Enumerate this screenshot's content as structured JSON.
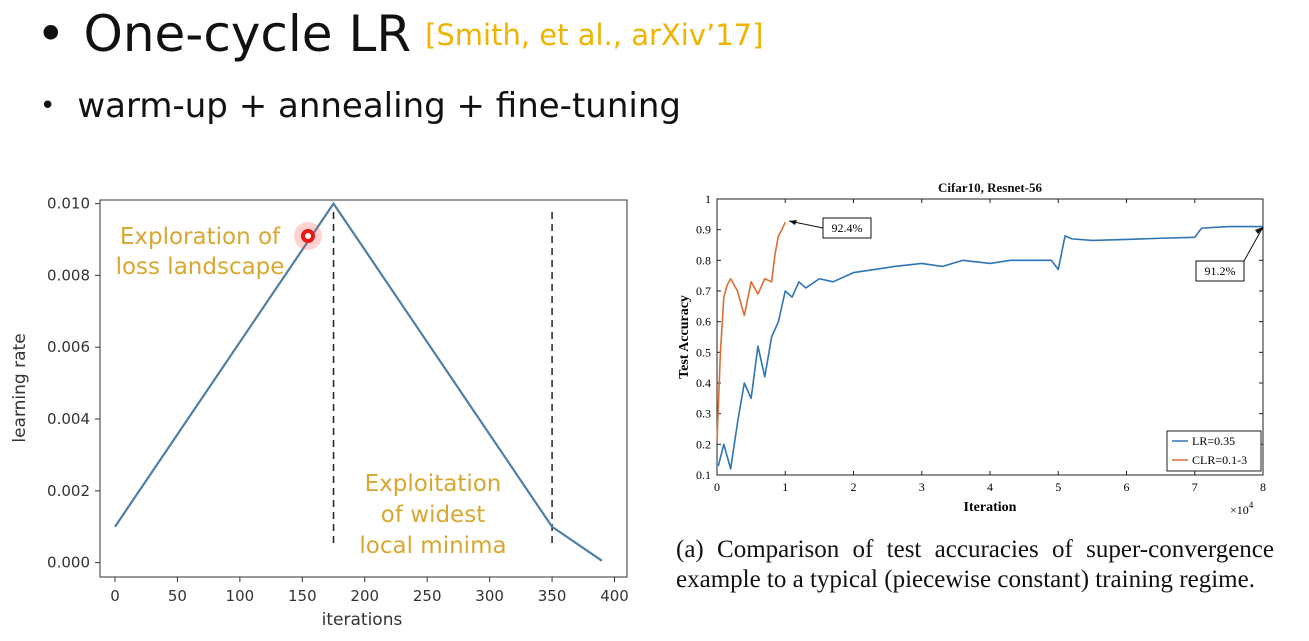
{
  "slide": {
    "title": "One-cycle LR",
    "citation": "[Smith, et al., arXiv’17]",
    "bullet_marker": "•",
    "subtitle": "warm-up + annealing + fine-tuning",
    "accent_color": "#f0b400"
  },
  "left_chart_annotations": {
    "explore_line1": "Exploration of",
    "explore_line2": "loss landscape",
    "exploit_line1": "Exploitation",
    "exploit_line2": "of widest",
    "exploit_line3": "local minima",
    "annotation_color": "#d9a730"
  },
  "right_chart_callouts": {
    "clr_peak": "92.4%",
    "lr_final": "91.2%",
    "x_multiplier": "×10",
    "x_multiplier_exp": "4"
  },
  "caption": "(a) Comparison of test accuracies of super-convergence example to a typical (piecewise constant) training regime.",
  "chart_data": [
    {
      "type": "line",
      "title": "",
      "xlabel": "iterations",
      "ylabel": "learning rate",
      "xlim": [
        -12,
        410
      ],
      "ylim": [
        -0.0004,
        0.0101
      ],
      "xticks": [
        0,
        50,
        100,
        150,
        200,
        250,
        300,
        350,
        400
      ],
      "yticks": [
        0.0,
        0.002,
        0.004,
        0.006,
        0.008,
        0.01
      ],
      "ytick_labels": [
        "0.000",
        "0.002",
        "0.004",
        "0.006",
        "0.008",
        "0.010"
      ],
      "grid": false,
      "series": [
        {
          "color": "#4f7fa5",
          "x": [
            0,
            175,
            350,
            390
          ],
          "y": [
            0.001,
            0.01,
            0.001,
            5e-05
          ]
        }
      ],
      "vlines": [
        175,
        350
      ]
    },
    {
      "type": "line",
      "title": "Cifar10, Resnet-56",
      "xlabel": "Iteration",
      "ylabel": "Test Accuracy",
      "xlim": [
        0,
        8
      ],
      "ylim": [
        0.1,
        1.0
      ],
      "xticks": [
        0,
        1,
        2,
        3,
        4,
        5,
        6,
        7,
        8
      ],
      "yticks": [
        0.1,
        0.2,
        0.3,
        0.4,
        0.5,
        0.6,
        0.7,
        0.8,
        0.9,
        1
      ],
      "legend_position": "bottom-right",
      "series": [
        {
          "name": "LR=0.35",
          "color": "#2f74b5",
          "x": [
            0.02,
            0.1,
            0.2,
            0.3,
            0.4,
            0.5,
            0.6,
            0.7,
            0.8,
            0.9,
            1.0,
            1.1,
            1.2,
            1.3,
            1.5,
            1.7,
            2.0,
            2.3,
            2.6,
            3.0,
            3.3,
            3.6,
            4.0,
            4.3,
            4.6,
            4.9,
            5.0,
            5.1,
            5.2,
            5.5,
            6.0,
            6.5,
            7.0,
            7.1,
            7.5,
            8.0
          ],
          "y": [
            0.13,
            0.2,
            0.12,
            0.27,
            0.4,
            0.35,
            0.52,
            0.42,
            0.55,
            0.6,
            0.7,
            0.68,
            0.73,
            0.71,
            0.74,
            0.73,
            0.76,
            0.77,
            0.78,
            0.79,
            0.78,
            0.8,
            0.79,
            0.8,
            0.8,
            0.8,
            0.77,
            0.88,
            0.87,
            0.865,
            0.868,
            0.872,
            0.875,
            0.905,
            0.91,
            0.91
          ]
        },
        {
          "name": "CLR=0.1-3",
          "color": "#d86f36",
          "x": [
            0.0,
            0.05,
            0.1,
            0.15,
            0.2,
            0.3,
            0.4,
            0.5,
            0.6,
            0.7,
            0.8,
            0.85,
            0.9,
            0.95,
            1.0
          ],
          "y": [
            0.21,
            0.5,
            0.68,
            0.72,
            0.74,
            0.7,
            0.62,
            0.73,
            0.69,
            0.74,
            0.73,
            0.82,
            0.88,
            0.9,
            0.924
          ]
        }
      ]
    }
  ]
}
